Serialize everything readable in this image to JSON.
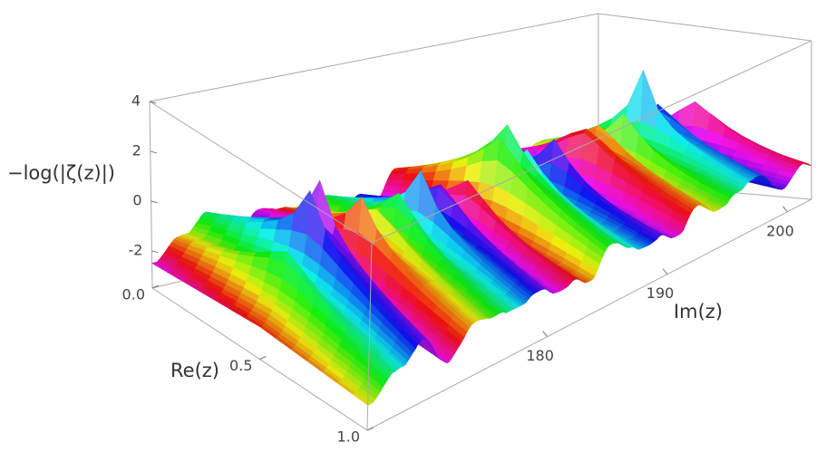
{
  "chart_data": {
    "type": "surface3d",
    "xlabel": "Im(z)",
    "ylabel": "Re(z)",
    "zlabel": "−log(|ζ(z)|)",
    "x": [
      167.184,
      169.094,
      169.912,
      173.412,
      174.754,
      176.441,
      178.377,
      179.916,
      182.207,
      184.874,
      185.599,
      187.229,
      189.416,
      192.027,
      193.08,
      195.265,
      196.876,
      198.015,
      201.265
    ],
    "values": [
      1.0,
      2.2,
      3.3,
      1.5,
      1.2,
      3.8,
      2.0,
      3.0,
      1.6,
      2.6,
      2.8,
      1.4,
      2.4,
      2.0,
      1.8,
      2.2,
      3.2,
      2.0,
      2.4
    ],
    "xlim": [
      165,
      202
    ],
    "xticks": [
      180,
      190,
      200
    ],
    "ylim": [
      0,
      1
    ],
    "yticks": [
      {
        "value": 0,
        "label": "0.0"
      },
      {
        "value": 0.5,
        "label": "0.5"
      },
      {
        "value": 1,
        "label": "1.0"
      }
    ],
    "zlim": [
      -3.5,
      4
    ],
    "zticks": [
      -2,
      0,
      2,
      4
    ],
    "grid": false
  }
}
